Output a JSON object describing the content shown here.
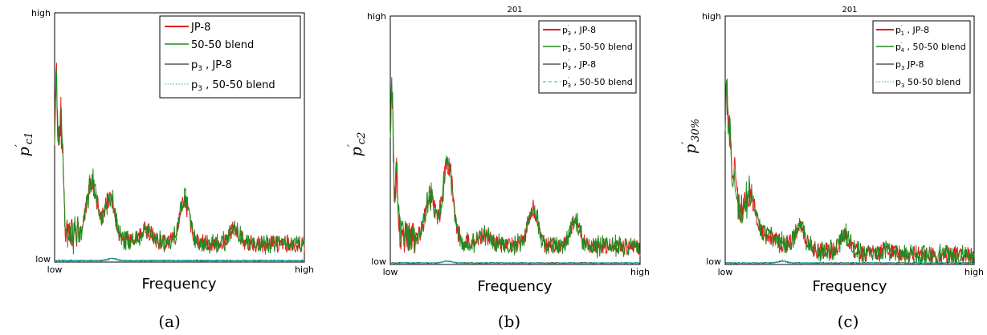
{
  "chart_data": [
    {
      "type": "line",
      "panel": "a",
      "caption": "(a)",
      "title": "",
      "xlabel": "Frequency",
      "ylabel": "p′c1",
      "ylabel_main": "p",
      "ylabel_sub": "c1",
      "x_ticks": [
        "low",
        "high"
      ],
      "y_ticks": [
        "low",
        "high"
      ],
      "xlim": [
        0,
        1
      ],
      "ylim": [
        0,
        1
      ],
      "grid": false,
      "legend_position": "top-right",
      "series": [
        {
          "name": "JP-8",
          "color": "#e41a1c",
          "style": "solid"
        },
        {
          "name": "50-50 blend",
          "color": "#1f8c1f",
          "style": "solid"
        },
        {
          "name": "p3 , JP-8",
          "label_main": "p",
          "label_sub": "3",
          "label_rest": " , JP-8",
          "color": "#000000",
          "style": "solid"
        },
        {
          "name": "p3 , 50-50 blend",
          "label_main": "p",
          "label_sub": "3",
          "label_rest": " , 50-50 blend",
          "color": "#20b2aa",
          "style": "dotted"
        }
      ],
      "peaks": [
        [
          0.005,
          0.75
        ],
        [
          0.02,
          0.45
        ],
        [
          0.03,
          0.42
        ],
        [
          0.15,
          0.33
        ],
        [
          0.22,
          0.27
        ],
        [
          0.37,
          0.13
        ],
        [
          0.52,
          0.25
        ],
        [
          0.72,
          0.14
        ]
      ]
    },
    {
      "type": "line",
      "panel": "b",
      "caption": "(b)",
      "title": "201",
      "xlabel": "Frequency",
      "ylabel": "p′c2",
      "ylabel_main": "p",
      "ylabel_sub": "c2",
      "x_ticks": [
        "low",
        "high"
      ],
      "y_ticks": [
        "low",
        "high"
      ],
      "xlim": [
        0,
        1
      ],
      "ylim": [
        0,
        1
      ],
      "grid": false,
      "legend_position": "top-right",
      "series": [
        {
          "name": "p′3 , JP-8",
          "label_main": "p",
          "label_sub": "3",
          "label_rest": " , JP-8",
          "color": "#e41a1c",
          "style": "solid"
        },
        {
          "name": "p′3 , 50-50 blend",
          "label_main": "p",
          "label_sub": "3",
          "label_rest": " , 50-50 blend",
          "color": "#1f8c1f",
          "style": "solid"
        },
        {
          "name": "p′3 , JP-8",
          "label_main": "p",
          "label_sub": "3",
          "label_rest": " , JP-8",
          "color": "#000000",
          "style": "solid"
        },
        {
          "name": "p′3 , 50-50 blend",
          "label_main": "p",
          "label_sub": "3",
          "label_rest": " , 50-50 blend",
          "color": "#20b2aa",
          "style": "dashed"
        }
      ],
      "peaks": [
        [
          0.005,
          0.76
        ],
        [
          0.025,
          0.35
        ],
        [
          0.16,
          0.28
        ],
        [
          0.23,
          0.42
        ],
        [
          0.38,
          0.12
        ],
        [
          0.57,
          0.22
        ],
        [
          0.74,
          0.17
        ]
      ]
    },
    {
      "type": "line",
      "panel": "c",
      "caption": "(c)",
      "title": "201",
      "xlabel": "Frequency",
      "ylabel": "p′30%",
      "ylabel_main": "p",
      "ylabel_sub": "30%",
      "x_ticks": [
        "low",
        "high"
      ],
      "y_ticks": [
        "low",
        "high"
      ],
      "xlim": [
        0,
        1
      ],
      "ylim": [
        0,
        1
      ],
      "grid": false,
      "legend_position": "top-right",
      "series": [
        {
          "name": "p′1 , JP-8",
          "label_main": "p",
          "label_sub": "1",
          "label_rest": " , JP-8",
          "color": "#e41a1c",
          "style": "solid"
        },
        {
          "name": "p′4 , 50-50 blend",
          "label_main": "p",
          "label_sub": "4",
          "label_rest": " , 50-50 blend",
          "color": "#1f8c1f",
          "style": "solid"
        },
        {
          "name": "p3 JP-8",
          "label_main": "p",
          "label_sub": "3",
          "label_rest": " JP-8",
          "color": "#000000",
          "style": "solid"
        },
        {
          "name": "p3 50-50 blend",
          "label_main": "p",
          "label_sub": "3",
          "label_rest": " 50-50 blend",
          "color": "#20b2aa",
          "style": "dotted"
        }
      ],
      "peaks": [
        [
          0.005,
          0.72
        ],
        [
          0.02,
          0.5
        ],
        [
          0.04,
          0.38
        ],
        [
          0.1,
          0.28
        ],
        [
          0.3,
          0.15
        ],
        [
          0.48,
          0.12
        ],
        [
          0.65,
          0.06
        ]
      ]
    }
  ]
}
